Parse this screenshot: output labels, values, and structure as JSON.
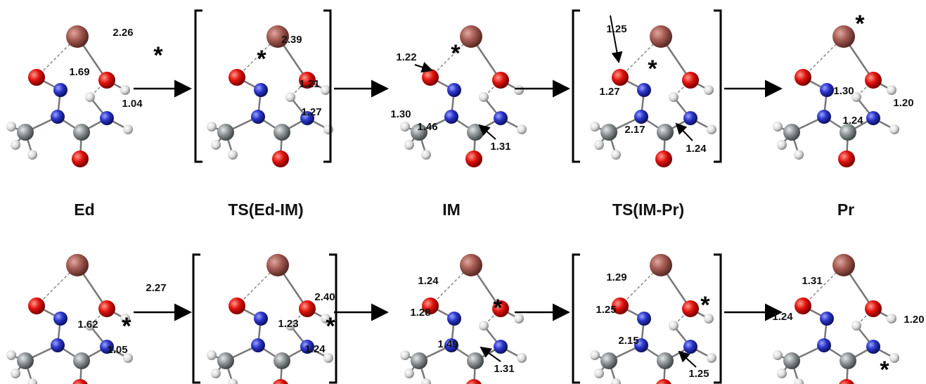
{
  "stage_labels": [
    "Ed",
    "TS(Ed-IM)",
    "IM",
    "TS(IM-Pr)",
    "Pr"
  ],
  "rows": [
    {
      "panels": [
        {
          "bond_labels": [
            "2.26",
            "1.69",
            "1.04"
          ],
          "star": "*"
        },
        {
          "bond_labels": [
            "2.39",
            "1.21",
            "1.27"
          ],
          "star": "*"
        },
        {
          "bond_labels": [
            "1.22",
            "1.30",
            "1.46",
            "1.31"
          ],
          "star": "*"
        },
        {
          "bond_labels": [
            "1.25",
            "1.27",
            "2.17",
            "1.24"
          ],
          "star": "*"
        },
        {
          "bond_labels": [
            "1.30",
            "1.20",
            "1.24"
          ],
          "star": "*"
        }
      ]
    },
    {
      "panels": [
        {
          "bond_labels": [
            "2.27",
            "1.62",
            "1.05"
          ],
          "star": "*"
        },
        {
          "bond_labels": [
            "2.40",
            "1.23",
            "1.24"
          ],
          "star": "*"
        },
        {
          "bond_labels": [
            "1.24",
            "1.28",
            "1.49",
            "1.31"
          ],
          "star": "*"
        },
        {
          "bond_labels": [
            "1.29",
            "1.25",
            "2.15",
            "1.25"
          ],
          "star": "*"
        },
        {
          "bond_labels": [
            "1.31",
            "1.24",
            "1.20"
          ],
          "star": "*"
        }
      ]
    }
  ]
}
